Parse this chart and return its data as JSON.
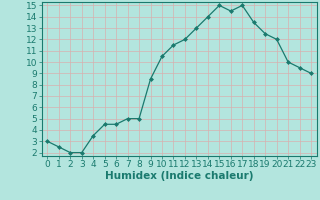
{
  "x": [
    0,
    1,
    2,
    3,
    4,
    5,
    6,
    7,
    8,
    9,
    10,
    11,
    12,
    13,
    14,
    15,
    16,
    17,
    18,
    19,
    20,
    21,
    22,
    23
  ],
  "y": [
    3.0,
    2.5,
    2.0,
    2.0,
    3.5,
    4.5,
    4.5,
    5.0,
    5.0,
    8.5,
    10.5,
    11.5,
    12.0,
    13.0,
    14.0,
    15.0,
    14.5,
    15.0,
    13.5,
    12.5,
    12.0,
    10.0,
    9.5,
    9.0
  ],
  "line_color": "#1a7a6e",
  "marker": "D",
  "marker_size": 2.0,
  "bg_color": "#b3e5de",
  "grid_color": "#d8b0b0",
  "xlabel": "Humidex (Indice chaleur)",
  "ylim": [
    2,
    15
  ],
  "xlim": [
    -0.5,
    23.5
  ],
  "yticks": [
    2,
    3,
    4,
    5,
    6,
    7,
    8,
    9,
    10,
    11,
    12,
    13,
    14,
    15
  ],
  "xticks": [
    0,
    1,
    2,
    3,
    4,
    5,
    6,
    7,
    8,
    9,
    10,
    11,
    12,
    13,
    14,
    15,
    16,
    17,
    18,
    19,
    20,
    21,
    22,
    23
  ],
  "tick_font_size": 6.5,
  "label_font_size": 7.5
}
